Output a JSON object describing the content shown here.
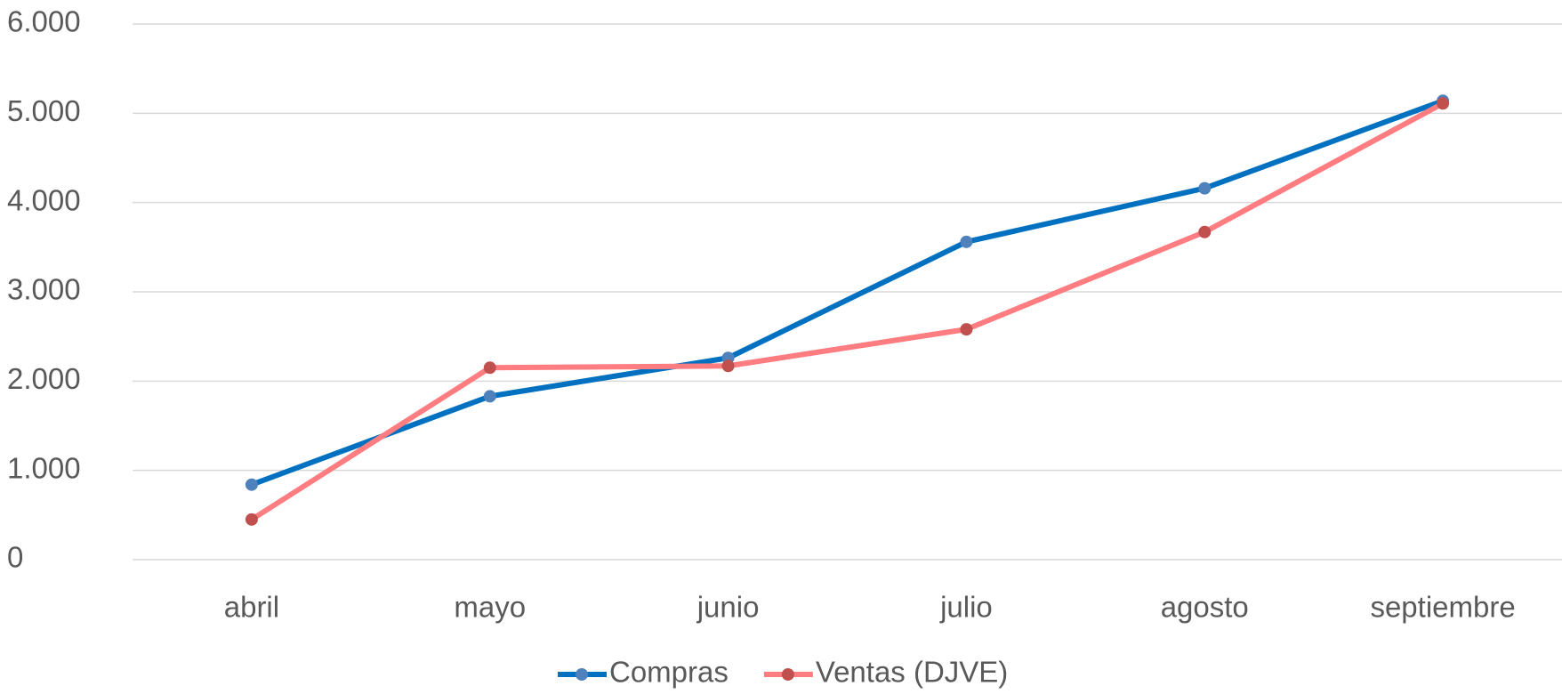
{
  "chart_data": {
    "type": "line",
    "categories": [
      "abril",
      "mayo",
      "junio",
      "julio",
      "agosto",
      "septiembre"
    ],
    "series": [
      {
        "name": "Compras",
        "color": "#0070c0",
        "marker_color": "#4f81bd",
        "values": [
          840,
          1830,
          2260,
          3560,
          4160,
          5140
        ]
      },
      {
        "name": "Ventas (DJVE)",
        "color": "#ff7c80",
        "marker_color": "#c0504d",
        "values": [
          450,
          2150,
          2170,
          2580,
          3670,
          5110
        ]
      }
    ],
    "ylim": [
      0,
      6000
    ],
    "yticks": [
      0,
      {
        "value": 1000,
        "label": "1.000"
      },
      {
        "value": 2000,
        "label": "2.000"
      },
      {
        "value": 3000,
        "label": "3.000"
      },
      {
        "value": 4000,
        "label": "4.000"
      },
      {
        "value": 5000,
        "label": "5.000"
      },
      {
        "value": 6000,
        "label": "6.000"
      }
    ],
    "grid": true,
    "legend": "bottom"
  }
}
